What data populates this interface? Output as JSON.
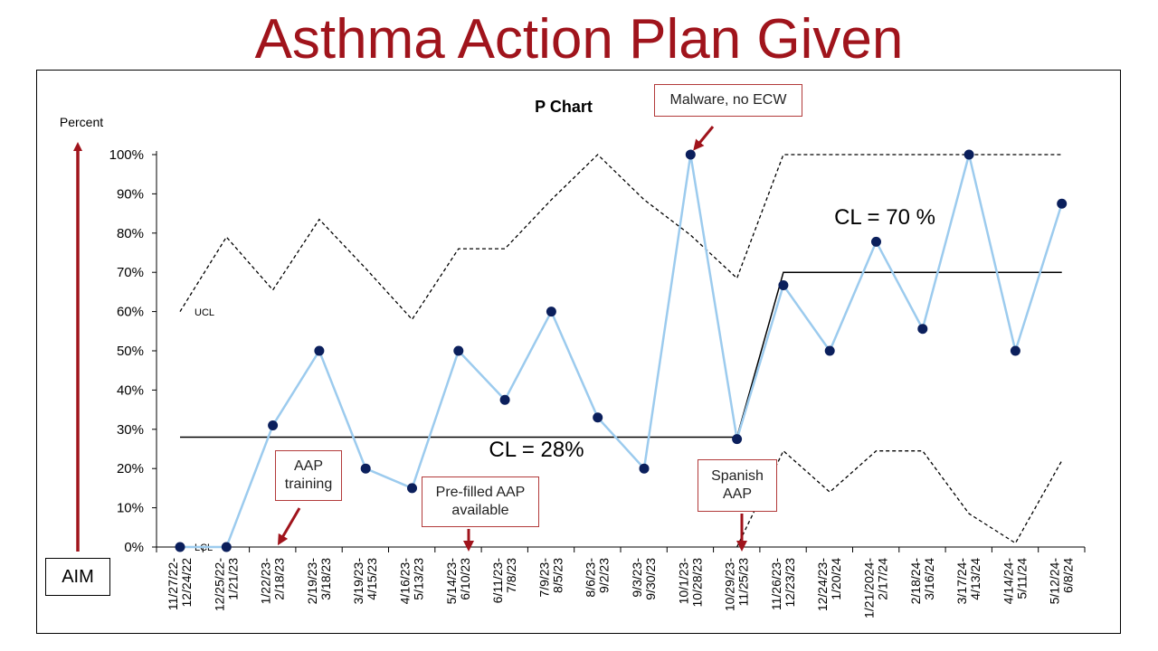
{
  "page": {
    "title": "Asthma Action Plan Given"
  },
  "aim_label": "AIM",
  "colors": {
    "title": "#a0141c",
    "series_line": "#9ccbee",
    "series_marker": "#0b1f5c",
    "annotation_border": "#b23a3a",
    "arrow": "#a0141c"
  },
  "annotations": {
    "aap_training": "AAP training",
    "prefilled": "Pre-filled AAP available",
    "malware": "Malware, no ECW",
    "spanish": "Spanish AAP"
  },
  "chart_data": {
    "type": "line",
    "title": "P Chart",
    "ylabel": "Percent",
    "ylim": [
      0,
      100
    ],
    "yticks": [
      "0%",
      "10%",
      "20%",
      "30%",
      "40%",
      "50%",
      "60%",
      "70%",
      "80%",
      "90%",
      "100%"
    ],
    "categories": [
      "11/27/22-12/24/22",
      "12/25/22-1/21/23",
      "1/22/23-2/18/23",
      "2/19/23-3/18/23",
      "3/19/23-4/15/23",
      "4/16/23-5/13/23",
      "5/14/23-6/10/23",
      "6/11/23-7/8/23",
      "7/9/23-8/5/23",
      "8/6/23-9/2/23",
      "9/3/23-9/30/23",
      "10/1/23-10/28/23",
      "10/29/23-11/25/23",
      "11/26/23-12/23/23",
      "12/24/23-1/20/24",
      "1/21/2024-2/17/24",
      "2/18/24-3/16/24",
      "3/17/24-4/13/24",
      "4/14/24-5/11/24",
      "5/12/24-6/8/24"
    ],
    "series": [
      {
        "values": [
          0,
          0,
          31,
          50,
          20,
          15,
          50,
          37.5,
          60,
          33,
          20,
          100,
          27.5,
          66.7,
          50,
          77.8,
          55.6,
          100,
          50,
          87.5
        ]
      }
    ],
    "ucl": [
      60,
      79,
      65.5,
      83.5,
      71,
      58,
      76,
      76,
      88.5,
      100,
      88.5,
      79.5,
      68.5,
      100,
      100,
      100,
      100,
      100,
      100,
      100
    ],
    "lcl": [
      null,
      null,
      null,
      null,
      null,
      null,
      null,
      null,
      null,
      null,
      null,
      null,
      0,
      24.5,
      14,
      24.5,
      24.5,
      8.5,
      1,
      22
    ],
    "center_lines": [
      {
        "label": "CL = 28%",
        "value": 28,
        "from": 0,
        "to": 12
      },
      {
        "label": "CL = 70 %",
        "value": 70,
        "from": 13,
        "to": 19
      }
    ],
    "ucl_label": "UCL",
    "lcl_label": "LCL",
    "grid": false
  }
}
